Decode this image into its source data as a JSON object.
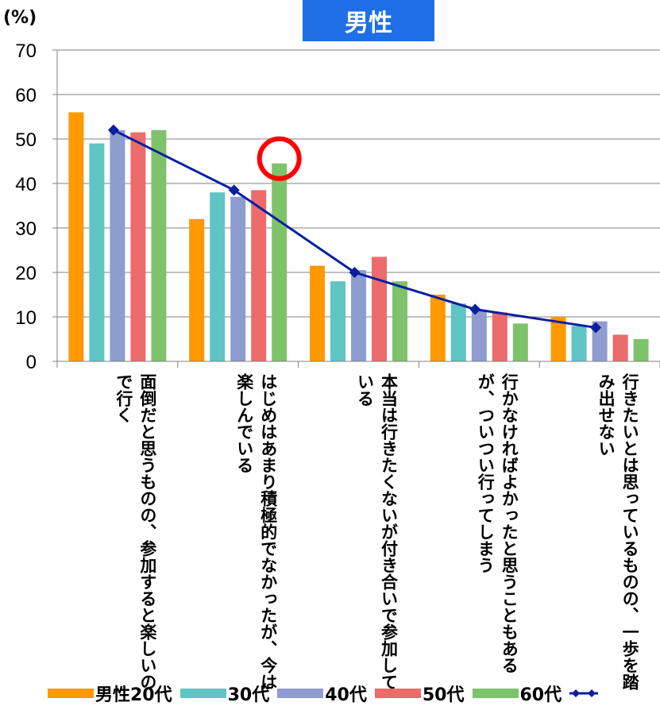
{
  "chart_data": {
    "type": "bar",
    "badge_title": "男性",
    "ylabel": "(%)",
    "ylim": [
      0,
      70
    ],
    "yticks": [
      0,
      10,
      20,
      30,
      40,
      50,
      60,
      70
    ],
    "grid": true,
    "categories": [
      "面倒だと思うものの、参加すると楽しいので行く",
      "はじめはあまり積極的でなかったが、今は楽しんでいる",
      "本当は行きたくないが付き合いで参加している",
      "行かなければよかったと思うこともあるが、ついつい行ってしまう",
      "行きたいとは思っているものの、一歩を踏み出せない"
    ],
    "series": [
      {
        "name": "男性20代",
        "color": "#ff9900",
        "values": [
          56,
          32,
          21.5,
          15,
          10
        ]
      },
      {
        "name": "30代",
        "color": "#5fc4c4",
        "values": [
          49,
          38,
          18,
          13,
          8
        ]
      },
      {
        "name": "40代",
        "color": "#8e9ccf",
        "values": [
          52,
          37,
          20.5,
          11.5,
          9
        ]
      },
      {
        "name": "50代",
        "color": "#ec6b6b",
        "values": [
          51.5,
          38.5,
          23.5,
          11,
          6
        ]
      },
      {
        "name": "60代",
        "color": "#7ec36b",
        "values": [
          52,
          44.5,
          18,
          8.5,
          5
        ]
      }
    ],
    "line_series": {
      "color": "#0a1fa0",
      "values": [
        52,
        38.5,
        20,
        11.7,
        7.6
      ]
    },
    "highlight_color": "#ff0000"
  }
}
